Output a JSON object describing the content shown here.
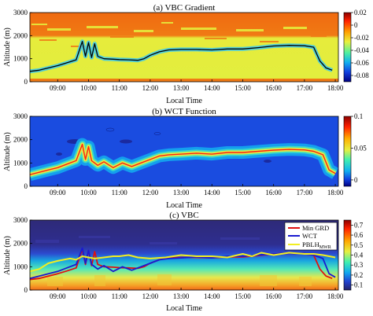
{
  "chart_data": [
    {
      "type": "heatmap",
      "title": "(a) VBC Gradient",
      "xlabel": "Local Time",
      "ylabel": "Altitude (m)",
      "xticks": [
        "09:00",
        "10:00",
        "11:00",
        "12:00",
        "13:00",
        "14:00",
        "15:00",
        "16:00",
        "17:00",
        "18:00"
      ],
      "yticks": [
        "0",
        "1000",
        "2000",
        "3000"
      ],
      "xlim_hours": [
        8.1,
        18.1
      ],
      "ylim": [
        0,
        3000
      ],
      "colorbar": {
        "ticks": [
          "0.02",
          "0",
          "-0.02",
          "-0.04",
          "-0.06",
          "-0.08"
        ],
        "range": [
          -0.09,
          0.02
        ]
      },
      "series": [
        {
          "legend": false,
          "color": "#000000",
          "x": [
            8.1,
            8.4,
            8.7,
            9.0,
            9.3,
            9.6,
            9.8,
            9.9,
            10.0,
            10.1,
            10.2,
            10.3,
            10.5,
            10.8,
            11.0,
            11.3,
            11.6,
            11.8,
            12.0,
            12.3,
            12.6,
            13.0,
            13.5,
            14.0,
            14.5,
            15.0,
            15.5,
            16.0,
            16.5,
            17.0,
            17.3,
            17.5,
            17.7,
            17.9
          ],
          "y": [
            450,
            500,
            600,
            700,
            820,
            950,
            1750,
            1100,
            1700,
            1050,
            1650,
            1100,
            1000,
            980,
            960,
            950,
            930,
            1000,
            1150,
            1300,
            1380,
            1400,
            1400,
            1380,
            1420,
            1420,
            1480,
            1550,
            1580,
            1560,
            1500,
            900,
            600,
            500
          ]
        }
      ]
    },
    {
      "type": "heatmap",
      "title": "(b) WCT Function",
      "xlabel": "Local Time",
      "ylabel": "Altitude (m)",
      "xticks": [
        "09:00",
        "10:00",
        "11:00",
        "12:00",
        "13:00",
        "14:00",
        "15:00",
        "16:00",
        "17:00",
        "18:00"
      ],
      "yticks": [
        "0",
        "1000",
        "2000",
        "3000"
      ],
      "xlim_hours": [
        8.1,
        18.1
      ],
      "ylim": [
        0,
        3000
      ],
      "colorbar": {
        "ticks": [
          "0.1",
          "0.05",
          "0"
        ],
        "range": [
          -0.01,
          0.1
        ]
      },
      "series": [
        {
          "legend": false,
          "color": "#ff2020",
          "x": [
            8.1,
            8.4,
            8.7,
            9.0,
            9.3,
            9.6,
            9.8,
            9.9,
            10.0,
            10.1,
            10.3,
            10.5,
            10.8,
            11.1,
            11.4,
            11.7,
            12.0,
            12.3,
            12.6,
            13.0,
            13.5,
            14.0,
            14.5,
            15.0,
            15.5,
            16.0,
            16.5,
            17.0,
            17.3,
            17.6,
            17.8,
            18.0
          ],
          "y": [
            500,
            600,
            700,
            800,
            950,
            1100,
            1800,
            1150,
            1700,
            1100,
            900,
            1050,
            800,
            1000,
            850,
            1000,
            1150,
            1300,
            1350,
            1380,
            1420,
            1380,
            1450,
            1450,
            1500,
            1550,
            1580,
            1560,
            1500,
            1350,
            700,
            550
          ]
        }
      ]
    },
    {
      "type": "heatmap",
      "title": "(c) VBC",
      "xlabel": "Local Time",
      "ylabel": "Altitude (m)",
      "xticks": [
        "09:00",
        "10:00",
        "11:00",
        "12:00",
        "13:00",
        "14:00",
        "15:00",
        "16:00",
        "17:00",
        "18:00"
      ],
      "yticks": [
        "0",
        "1000",
        "2000",
        "3000"
      ],
      "xlim_hours": [
        8.1,
        18.1
      ],
      "ylim": [
        0,
        3000
      ],
      "colorbar": {
        "ticks": [
          "0.7",
          "0.6",
          "0.5",
          "0.4",
          "0.3",
          "0.2",
          "0.1"
        ],
        "range": [
          0.05,
          0.75
        ]
      },
      "legend_location": "top-right",
      "series": [
        {
          "name": "Min GRD",
          "color": "#e01010",
          "x": [
            8.1,
            8.4,
            8.7,
            9.0,
            9.3,
            9.6,
            9.8,
            9.9,
            10.0,
            10.1,
            10.2,
            10.3,
            10.5,
            10.8,
            11.0,
            11.3,
            11.6,
            11.8,
            12.0,
            12.3,
            12.6,
            13.0,
            13.5,
            14.0,
            14.5,
            15.0,
            15.5,
            16.0,
            16.5,
            17.0,
            17.3,
            17.5,
            17.7,
            17.9
          ],
          "y": [
            450,
            500,
            600,
            700,
            820,
            950,
            1750,
            1100,
            1700,
            1050,
            1650,
            1100,
            1000,
            980,
            960,
            950,
            930,
            1000,
            1150,
            1300,
            1380,
            1400,
            1400,
            1380,
            1420,
            1420,
            1480,
            1550,
            1580,
            1560,
            1500,
            900,
            600,
            500
          ]
        },
        {
          "name": "WCT",
          "color": "#1a1ad0",
          "x": [
            8.1,
            8.4,
            8.7,
            9.0,
            9.3,
            9.6,
            9.8,
            9.9,
            10.0,
            10.1,
            10.3,
            10.5,
            10.8,
            11.1,
            11.4,
            11.7,
            12.0,
            12.3,
            12.6,
            13.0,
            13.5,
            14.0,
            14.5,
            15.0,
            15.5,
            16.0,
            16.5,
            17.0,
            17.3,
            17.6,
            17.8,
            18.0
          ],
          "y": [
            500,
            600,
            700,
            800,
            950,
            1100,
            1800,
            1150,
            1700,
            1100,
            900,
            1050,
            800,
            1000,
            850,
            1000,
            1150,
            1300,
            1350,
            1380,
            1420,
            1380,
            1450,
            1450,
            1500,
            1550,
            1580,
            1560,
            1500,
            1350,
            700,
            550
          ]
        },
        {
          "name": "PBLH",
          "name_subscript": "MWR",
          "color": "#f2ee20",
          "x": [
            8.1,
            8.4,
            8.7,
            9.0,
            9.2,
            9.4,
            9.6,
            9.8,
            10.0,
            10.2,
            10.5,
            10.8,
            11.0,
            11.3,
            11.6,
            12.0,
            12.5,
            13.0,
            13.5,
            14.0,
            14.5,
            15.0,
            15.3,
            15.6,
            16.0,
            16.5,
            17.0,
            17.3,
            17.6,
            18.0
          ],
          "y": [
            800,
            900,
            1150,
            1250,
            1300,
            1350,
            1300,
            1450,
            1400,
            1350,
            1400,
            1450,
            1450,
            1500,
            1400,
            1350,
            1400,
            1500,
            1450,
            1450,
            1400,
            1550,
            1450,
            1600,
            1500,
            1600,
            1550,
            1550,
            1500,
            1400
          ]
        }
      ]
    }
  ]
}
